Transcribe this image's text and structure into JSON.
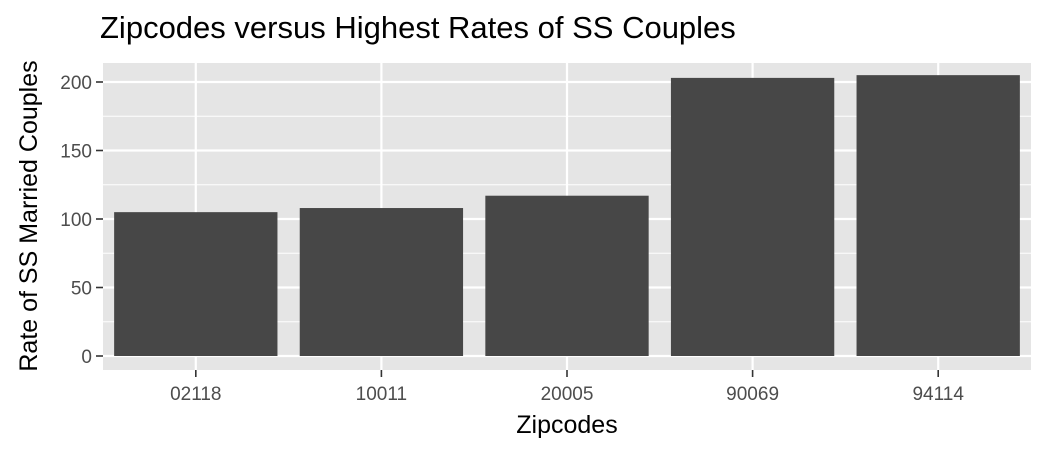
{
  "chart_data": {
    "type": "bar",
    "title": "Zipcodes versus Highest Rates of SS Couples",
    "xlabel": "Zipcodes",
    "ylabel": "Rate of SS Married Couples",
    "categories": [
      "02118",
      "10011",
      "20005",
      "90069",
      "94114"
    ],
    "values": [
      105,
      108,
      117,
      203,
      205
    ],
    "ylim": [
      0,
      215
    ],
    "yticks": [
      0,
      50,
      100,
      150,
      200
    ],
    "grid": true,
    "legend": "none",
    "colors": {
      "bar": "#474747",
      "panel": "#e5e5e5",
      "grid": "#ffffff"
    }
  }
}
